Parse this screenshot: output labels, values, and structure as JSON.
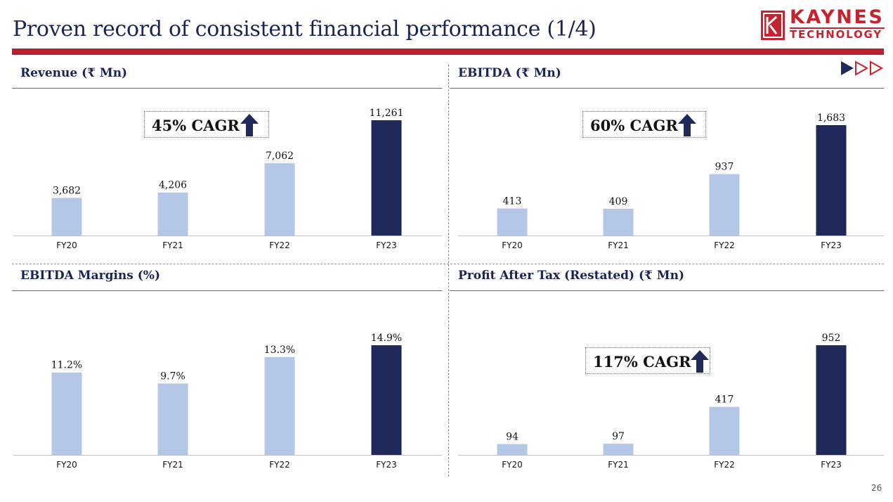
{
  "slide": {
    "title": "Proven record of consistent financial performance (1/4)",
    "page_number": "26"
  },
  "logo": {
    "line1": "KAYNES",
    "line2": "TECHNOLOGY"
  },
  "colors": {
    "accent_red": "#b8202f",
    "navy": "#1f2a5a",
    "bar_light": "#b4c7e7",
    "bar_dark": "#1f2a5a"
  },
  "chart_data": [
    {
      "type": "bar",
      "title": "Revenue (₹ Mn)",
      "categories": [
        "FY20",
        "FY21",
        "FY22",
        "FY23"
      ],
      "values": [
        3682,
        4206,
        7062,
        11261
      ],
      "labels": [
        "3,682",
        "4,206",
        "7,062",
        "11,261"
      ],
      "highlight": "FY23",
      "ylim": [
        0,
        11261
      ],
      "annotation": "45% CAGR"
    },
    {
      "type": "bar",
      "title": "EBITDA (₹ Mn)",
      "categories": [
        "FY20",
        "FY21",
        "FY22",
        "FY23"
      ],
      "values": [
        413,
        409,
        937,
        1683
      ],
      "labels": [
        "413",
        "409",
        "937",
        "1,683"
      ],
      "highlight": "FY23",
      "ylim": [
        0,
        1683
      ],
      "annotation": "60% CAGR"
    },
    {
      "type": "bar",
      "title": "EBITDA Margins (%)",
      "categories": [
        "FY20",
        "FY21",
        "FY22",
        "FY23"
      ],
      "values": [
        11.2,
        9.7,
        13.3,
        14.9
      ],
      "labels": [
        "11.2%",
        "9.7%",
        "13.3%",
        "14.9%"
      ],
      "highlight": "FY23",
      "ylim": [
        0,
        14.9
      ]
    },
    {
      "type": "bar",
      "title": "Profit After Tax (Restated) (₹ Mn)",
      "categories": [
        "FY20",
        "FY21",
        "FY22",
        "FY23"
      ],
      "values": [
        94,
        97,
        417,
        952
      ],
      "labels": [
        "94",
        "97",
        "417",
        "952"
      ],
      "highlight": "FY23",
      "ylim": [
        0,
        952
      ],
      "annotation": "117% CAGR"
    }
  ]
}
